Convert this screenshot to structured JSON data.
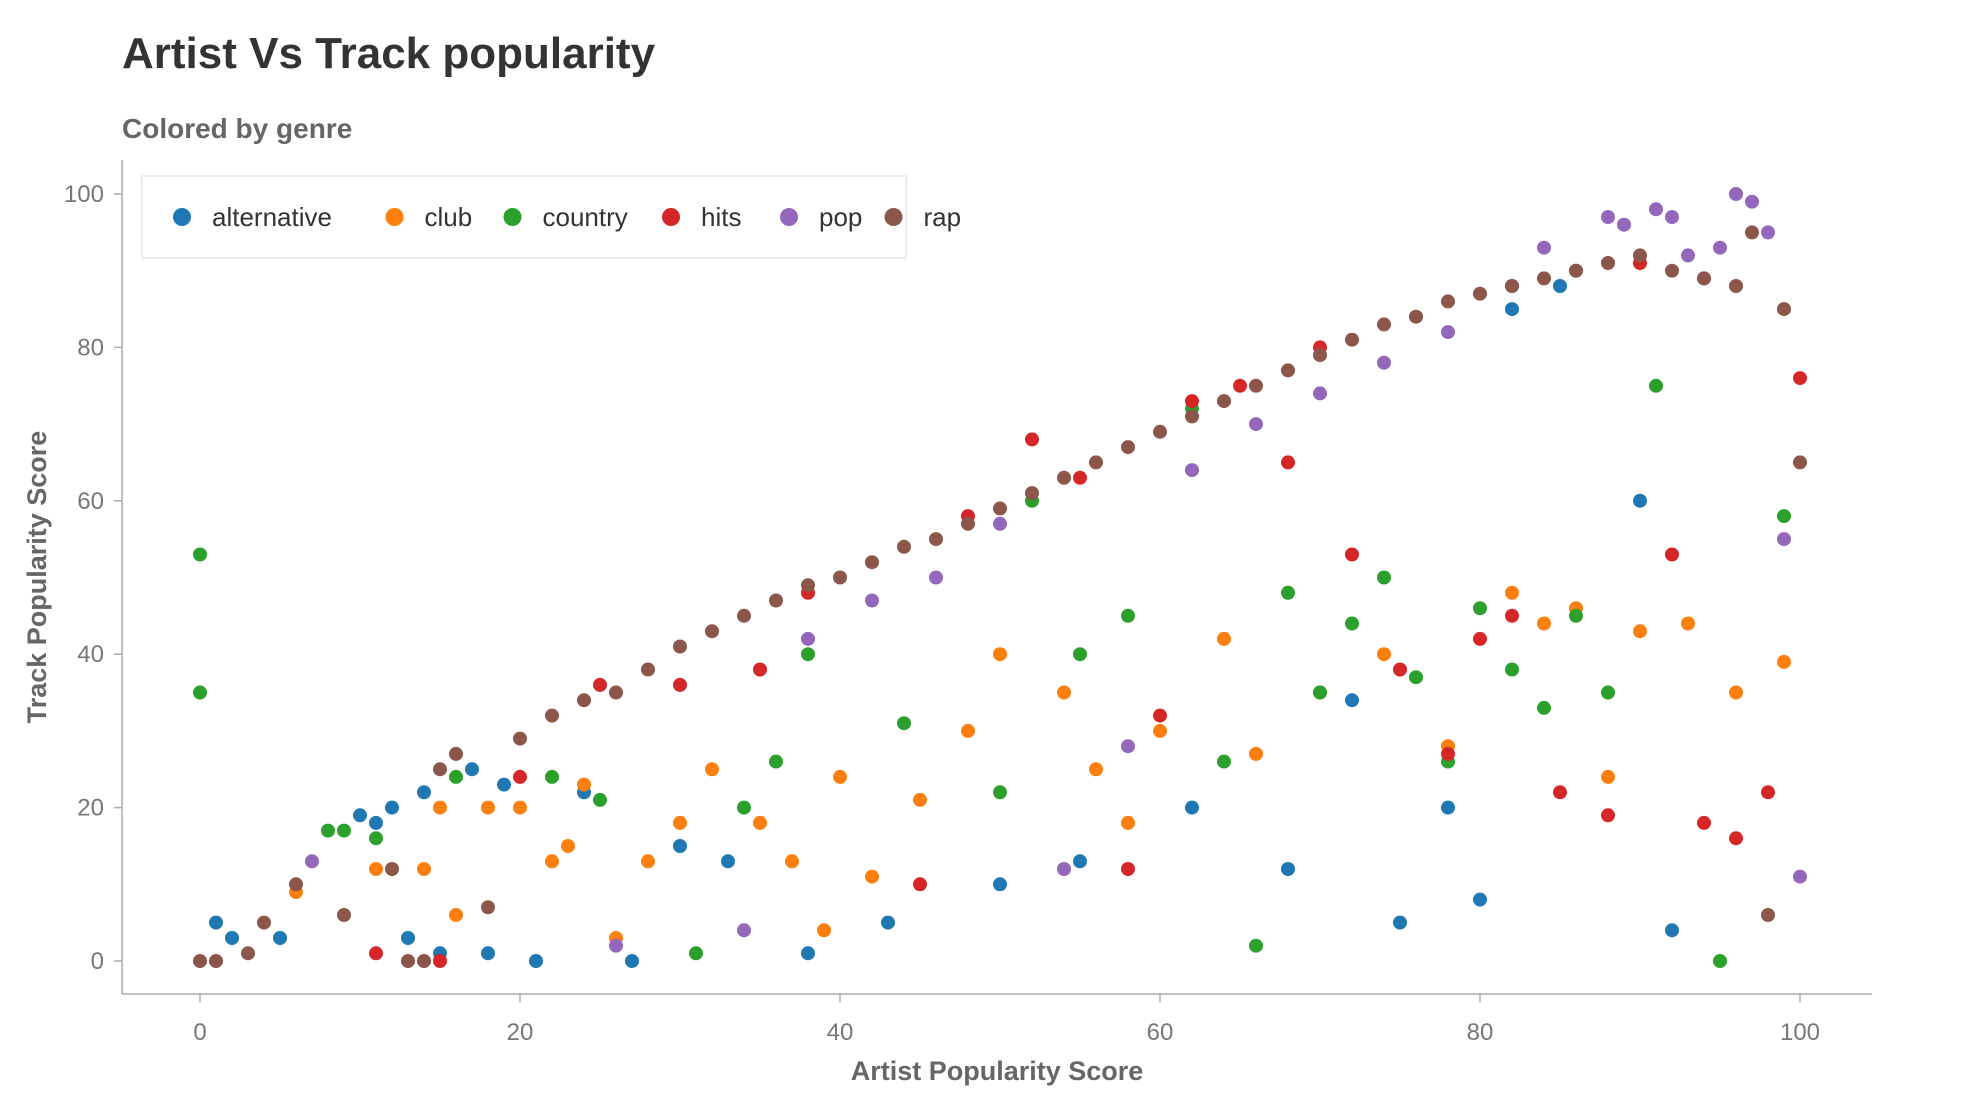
{
  "chart_data": {
    "type": "scatter",
    "title": "Artist Vs Track popularity",
    "subtitle": "Colored by genre",
    "xlabel": "Artist Popularity Score",
    "ylabel": "Track Popularity Score",
    "xlim": [
      -5,
      105
    ],
    "ylim": [
      -5,
      105
    ],
    "xticks": [
      0,
      20,
      40,
      60,
      80,
      100
    ],
    "yticks": [
      0,
      20,
      40,
      60,
      80,
      100
    ],
    "legend_position": "top-left",
    "grid": false,
    "series": [
      {
        "name": "alternative",
        "color": "#1f77b4",
        "x": [
          1,
          2,
          5,
          10,
          11,
          12,
          13,
          14,
          15,
          17,
          18,
          19,
          21,
          24,
          27,
          30,
          33,
          38,
          43,
          50,
          55,
          62,
          68,
          72,
          75,
          78,
          80,
          82,
          85,
          90,
          92
        ],
        "y": [
          5,
          3,
          3,
          19,
          18,
          20,
          3,
          22,
          1,
          25,
          1,
          23,
          0,
          22,
          0,
          15,
          13,
          1,
          5,
          10,
          13,
          20,
          12,
          34,
          5,
          20,
          8,
          85,
          88,
          60,
          4
        ]
      },
      {
        "name": "club",
        "color": "#ff7f0e",
        "x": [
          6,
          11,
          14,
          15,
          16,
          18,
          20,
          22,
          23,
          24,
          26,
          28,
          30,
          32,
          35,
          37,
          39,
          40,
          42,
          45,
          48,
          50,
          54,
          56,
          58,
          60,
          64,
          66,
          70,
          74,
          78,
          82,
          84,
          86,
          88,
          90,
          93,
          96,
          99
        ],
        "y": [
          9,
          12,
          12,
          20,
          6,
          20,
          20,
          13,
          15,
          23,
          3,
          13,
          18,
          25,
          18,
          13,
          4,
          24,
          11,
          21,
          30,
          40,
          35,
          25,
          18,
          30,
          42,
          27,
          35,
          40,
          28,
          48,
          44,
          46,
          24,
          43,
          44,
          35,
          39
        ]
      },
      {
        "name": "country",
        "color": "#2ca02c",
        "x": [
          0,
          0,
          8,
          9,
          11,
          16,
          22,
          25,
          31,
          34,
          36,
          38,
          44,
          50,
          52,
          55,
          58,
          62,
          64,
          66,
          68,
          70,
          72,
          74,
          76,
          78,
          80,
          82,
          84,
          86,
          88,
          91,
          95,
          99
        ],
        "y": [
          53,
          35,
          17,
          17,
          16,
          24,
          24,
          21,
          1,
          20,
          26,
          40,
          31,
          22,
          60,
          40,
          45,
          72,
          26,
          2,
          48,
          35,
          44,
          50,
          37,
          26,
          46,
          38,
          33,
          45,
          35,
          75,
          0,
          58
        ]
      },
      {
        "name": "hits",
        "color": "#d62728",
        "x": [
          11,
          15,
          20,
          25,
          30,
          35,
          38,
          45,
          48,
          52,
          55,
          58,
          60,
          62,
          65,
          68,
          70,
          72,
          75,
          78,
          80,
          82,
          85,
          88,
          90,
          92,
          94,
          96,
          98,
          100
        ],
        "y": [
          1,
          0,
          24,
          36,
          36,
          38,
          48,
          10,
          58,
          68,
          63,
          12,
          32,
          73,
          75,
          65,
          80,
          53,
          38,
          27,
          42,
          45,
          22,
          19,
          91,
          53,
          18,
          16,
          22,
          76
        ]
      },
      {
        "name": "pop",
        "color": "#9467bd",
        "x": [
          7,
          26,
          34,
          38,
          42,
          46,
          50,
          54,
          58,
          62,
          66,
          70,
          74,
          78,
          82,
          84,
          86,
          88,
          89,
          91,
          92,
          93,
          94,
          95,
          96,
          97,
          98,
          99,
          100
        ],
        "y": [
          13,
          2,
          4,
          42,
          47,
          50,
          57,
          12,
          28,
          64,
          70,
          74,
          78,
          82,
          88,
          93,
          90,
          97,
          96,
          98,
          97,
          92,
          89,
          93,
          100,
          99,
          95,
          55,
          11
        ]
      },
      {
        "name": "rap",
        "color": "#8c564b",
        "x": [
          0,
          1,
          3,
          4,
          6,
          9,
          12,
          13,
          14,
          15,
          16,
          18,
          20,
          22,
          24,
          26,
          28,
          30,
          32,
          34,
          36,
          38,
          40,
          42,
          44,
          46,
          48,
          50,
          52,
          54,
          56,
          58,
          60,
          62,
          64,
          66,
          68,
          70,
          72,
          74,
          76,
          78,
          80,
          82,
          84,
          86,
          88,
          90,
          92,
          94,
          96,
          97,
          98,
          99,
          100
        ],
        "y": [
          0,
          0,
          1,
          5,
          10,
          6,
          12,
          0,
          0,
          25,
          27,
          7,
          29,
          32,
          34,
          35,
          38,
          41,
          43,
          45,
          47,
          49,
          50,
          52,
          54,
          55,
          57,
          59,
          61,
          63,
          65,
          67,
          69,
          71,
          73,
          75,
          77,
          79,
          81,
          83,
          84,
          86,
          87,
          88,
          89,
          90,
          91,
          92,
          90,
          89,
          88,
          95,
          6,
          85,
          65
        ]
      }
    ]
  }
}
